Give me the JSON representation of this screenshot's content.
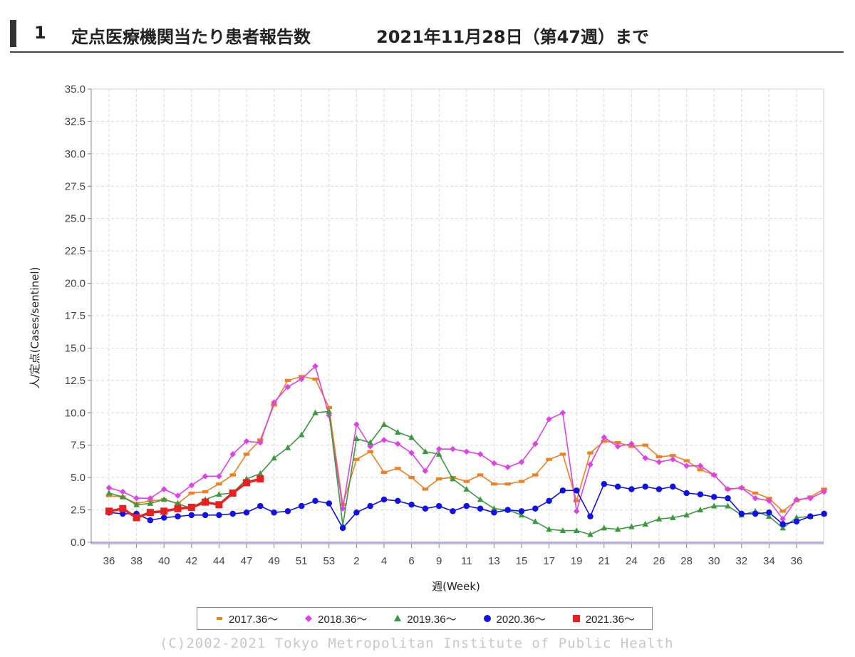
{
  "header": {
    "number": "1",
    "title": "定点医療機関当たり患者報告数",
    "date": "2021年11月28日（第47週）まで"
  },
  "copyright": "(C)2002-2021 Tokyo Metropolitan Institute of Public Health",
  "chart_data": {
    "type": "line",
    "title": "",
    "xlabel": "週(Week)",
    "ylabel": "人/定点(Cases/sentinel)",
    "ylim": [
      0,
      35
    ],
    "y_ticks": [
      "0.0",
      "2.5",
      "5.0",
      "7.5",
      "10.0",
      "12.5",
      "15.0",
      "17.5",
      "20.0",
      "22.5",
      "25.0",
      "27.5",
      "30.0",
      "32.5",
      "35.0"
    ],
    "x_tick_labels": [
      "36",
      "38",
      "40",
      "42",
      "44",
      "47",
      "49",
      "51",
      "53",
      "2",
      "4",
      "6",
      "9",
      "11",
      "13",
      "15",
      "17",
      "19",
      "21",
      "24",
      "26",
      "28",
      "30",
      "32",
      "34",
      "36"
    ],
    "x_tick_positions": [
      0,
      2,
      4,
      6,
      8,
      10,
      12,
      14,
      16,
      18,
      20,
      22,
      24,
      26,
      28,
      30,
      32,
      34,
      36,
      38,
      40,
      42,
      44,
      46,
      48,
      50
    ],
    "grid": true,
    "legend_position": "bottom",
    "series": [
      {
        "name": "2017.36～",
        "color": "#f07f20",
        "marker": "dash",
        "values": [
          3.6,
          3.5,
          3.0,
          3.2,
          3.3,
          3.0,
          3.8,
          3.9,
          4.5,
          5.2,
          6.8,
          7.9,
          10.6,
          12.5,
          12.8,
          12.6,
          10.4,
          2.9,
          6.4,
          7.0,
          5.4,
          5.7,
          5.0,
          4.1,
          4.9,
          5.0,
          4.7,
          5.2,
          4.5,
          4.5,
          4.7,
          5.2,
          6.4,
          6.8,
          3.2,
          6.9,
          7.8,
          7.7,
          7.4,
          7.5,
          6.6,
          6.7,
          6.3,
          5.6,
          5.2,
          4.1,
          4.2,
          3.8,
          3.4,
          2.4,
          3.2,
          3.5,
          4.1
        ]
      },
      {
        "name": "2018.36～",
        "color": "#e040e8",
        "marker": "diamond",
        "values": [
          4.2,
          3.9,
          3.4,
          3.4,
          4.1,
          3.6,
          4.4,
          5.1,
          5.1,
          6.8,
          7.8,
          7.7,
          10.8,
          12.0,
          12.6,
          13.6,
          9.8,
          2.6,
          9.1,
          7.4,
          7.9,
          7.6,
          6.9,
          5.5,
          7.2,
          7.2,
          7.0,
          6.8,
          6.1,
          5.8,
          6.2,
          7.6,
          9.5,
          10.0,
          2.4,
          6.0,
          8.1,
          7.4,
          7.6,
          6.5,
          6.2,
          6.4,
          5.9,
          5.9,
          5.2,
          4.1,
          4.2,
          3.4,
          3.2,
          1.8,
          3.3,
          3.4,
          3.9
        ]
      },
      {
        "name": "2019.36～",
        "color": "#3a9a40",
        "marker": "triangle",
        "values": [
          3.8,
          3.5,
          2.9,
          3.0,
          3.3,
          3.0,
          2.6,
          3.3,
          3.7,
          3.8,
          4.9,
          5.3,
          6.5,
          7.3,
          8.3,
          10.0,
          10.1,
          1.3,
          8.0,
          7.7,
          9.1,
          8.5,
          8.1,
          7.0,
          6.8,
          4.9,
          4.1,
          3.3,
          2.6,
          2.5,
          2.1,
          1.6,
          1.0,
          0.9,
          0.9,
          0.6,
          1.1,
          1.0,
          1.2,
          1.4,
          1.8,
          1.9,
          2.1,
          2.5,
          2.8,
          2.8,
          2.1,
          2.4,
          2.0,
          1.1,
          1.9,
          2.0,
          2.2
        ]
      },
      {
        "name": "2020.36～",
        "color": "#1010e8",
        "marker": "circle",
        "values": [
          2.3,
          2.2,
          2.2,
          1.7,
          1.9,
          2.0,
          2.1,
          2.1,
          2.1,
          2.2,
          2.3,
          2.8,
          2.3,
          2.4,
          2.8,
          3.2,
          3.0,
          1.1,
          2.3,
          2.8,
          3.3,
          3.2,
          2.9,
          2.6,
          2.8,
          2.4,
          2.8,
          2.6,
          2.3,
          2.5,
          2.4,
          2.6,
          3.2,
          4.0,
          4.0,
          2.0,
          4.5,
          4.3,
          4.1,
          4.3,
          4.1,
          4.3,
          3.8,
          3.7,
          3.5,
          3.4,
          2.2,
          2.2,
          2.3,
          1.4,
          1.6,
          2.0,
          2.2
        ]
      },
      {
        "name": "2021.36～",
        "color": "#e82020",
        "marker": "square",
        "values": [
          2.4,
          2.6,
          1.9,
          2.3,
          2.4,
          2.6,
          2.7,
          3.1,
          2.9,
          3.8,
          4.6,
          4.9
        ]
      }
    ]
  }
}
